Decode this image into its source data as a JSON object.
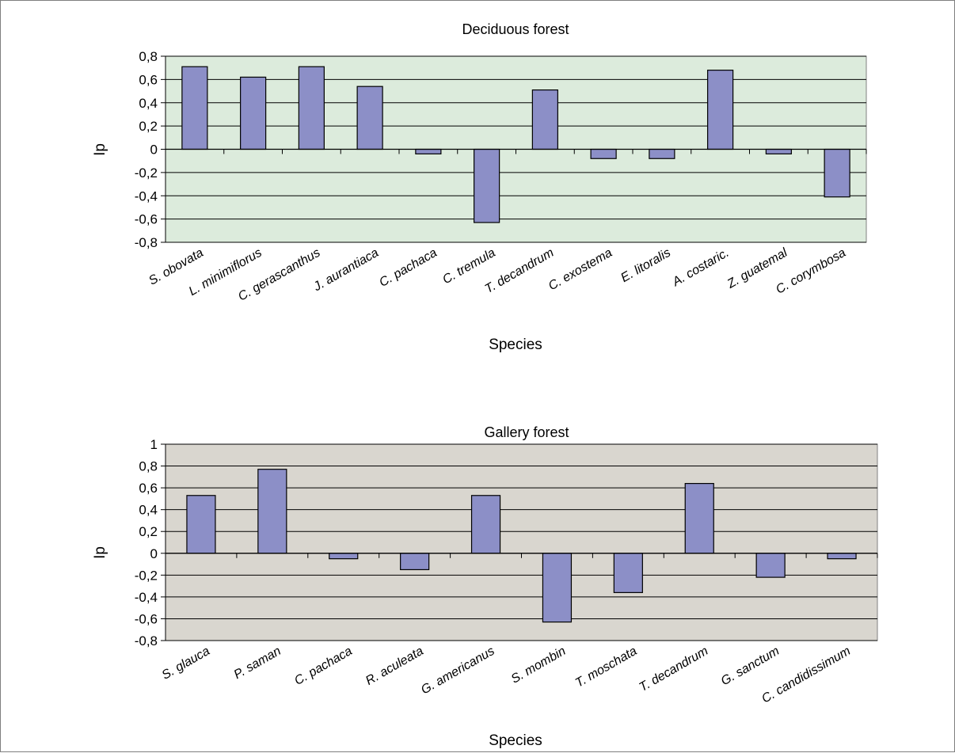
{
  "chart_data": [
    {
      "type": "bar",
      "title": "Deciduous forest",
      "xlabel": "Species",
      "ylabel": "Ip",
      "ylim": [
        -0.8,
        0.8
      ],
      "yticks": [
        0.8,
        0.6,
        0.4,
        0.2,
        0,
        -0.2,
        -0.4,
        -0.6,
        -0.8
      ],
      "ytick_labels": [
        "0,8",
        "0,6",
        "0,4",
        "0,2",
        "0",
        "-0,2",
        "-0,4",
        "-0,6",
        "-0,8"
      ],
      "grid": true,
      "colors": {
        "plot_bg": "#dcebdc",
        "bar": "#8c8fc7",
        "bar_edge": "#000000",
        "grid": "#000000"
      },
      "categories": [
        "S. obovata",
        "L. minimiflorus",
        "C. gerascanthus",
        "J. aurantiaca",
        "C. pachaca",
        "C. tremula",
        "T. decandrum",
        "C. exostema",
        "E. litoralis",
        "A. costaric.",
        "Z. guatemal",
        "C. corymbosa"
      ],
      "values": [
        0.71,
        0.62,
        0.71,
        0.54,
        -0.04,
        -0.63,
        0.51,
        -0.08,
        -0.08,
        0.68,
        -0.04,
        -0.41
      ]
    },
    {
      "type": "bar",
      "title": "Gallery forest",
      "xlabel": "Species",
      "ylabel": "Ip",
      "ylim": [
        -0.8,
        1
      ],
      "yticks": [
        1,
        0.8,
        0.6,
        0.4,
        0.2,
        0,
        -0.2,
        -0.4,
        -0.6,
        -0.8
      ],
      "ytick_labels": [
        "1",
        "0,8",
        "0,6",
        "0,4",
        "0,2",
        "0",
        "-0,2",
        "-0,4",
        "-0,6",
        "-0,8"
      ],
      "grid": true,
      "colors": {
        "plot_bg": "#d9d6cf",
        "bar": "#8c8fc7",
        "bar_edge": "#000000",
        "grid": "#000000"
      },
      "categories": [
        "S. glauca",
        "P. saman",
        "C. pachaca",
        "R. aculeata",
        "G. americanus",
        "S. mombin",
        "T. moschata",
        "T. decandrum",
        "G. sanctum",
        "C. candidissimum"
      ],
      "values": [
        0.53,
        0.77,
        -0.05,
        -0.15,
        0.53,
        -0.63,
        -0.36,
        0.64,
        -0.22,
        -0.05
      ]
    }
  ]
}
